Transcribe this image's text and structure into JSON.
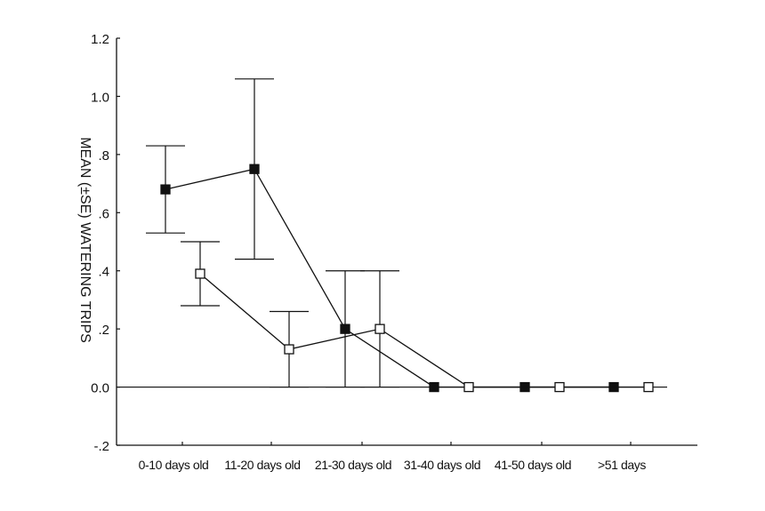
{
  "chart_data": {
    "type": "line",
    "title": "",
    "xlabel": "",
    "ylabel": "MEAN (±SE) WATERING TRIPS",
    "ylim": [
      -0.2,
      1.2
    ],
    "y_ticks": [
      {
        "value": -0.2,
        "label": "-.2"
      },
      {
        "value": 0.0,
        "label": "0.0"
      },
      {
        "value": 0.2,
        "label": ".2"
      },
      {
        "value": 0.4,
        "label": ".4"
      },
      {
        "value": 0.6,
        "label": ".6"
      },
      {
        "value": 0.8,
        "label": ".8"
      },
      {
        "value": 1.0,
        "label": "1.0"
      },
      {
        "value": 1.2,
        "label": "1.2"
      }
    ],
    "categories": [
      "0-10 days old",
      "11-20 days old",
      "21-30 days old",
      "31-40 days old",
      "41-50 days old",
      ">51 days"
    ],
    "grid": false,
    "legend": "none",
    "series": [
      {
        "marker": "filled-square",
        "values": [
          0.68,
          0.75,
          0.2,
          0.0,
          0.0,
          0.0
        ],
        "error": [
          0.15,
          0.31,
          0.2,
          0.0,
          0.0,
          0.0
        ]
      },
      {
        "marker": "open-square",
        "values": [
          0.39,
          0.13,
          0.2,
          0.0,
          0.0,
          0.0
        ],
        "error": [
          0.11,
          0.13,
          0.2,
          0.0,
          0.0,
          0.0
        ]
      }
    ],
    "colors": {
      "ink": "#111111",
      "background": "#ffffff"
    }
  }
}
